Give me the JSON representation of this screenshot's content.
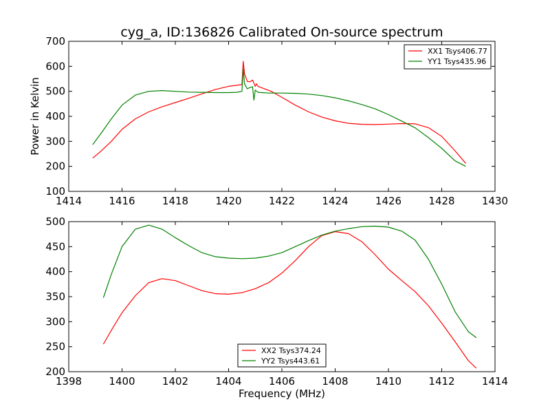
{
  "chart_data": [
    {
      "type": "line",
      "title": "cyg_a, ID:136826 Calibrated On-source spectrum",
      "xlabel": "",
      "ylabel": "Power in Kelvin",
      "xlim": [
        1414,
        1430
      ],
      "ylim": [
        100,
        700
      ],
      "xticks": [
        "1414",
        "1416",
        "1418",
        "1420",
        "1422",
        "1424",
        "1426",
        "1428",
        "1430"
      ],
      "yticks": [
        "100",
        "200",
        "300",
        "400",
        "500",
        "600",
        "700"
      ],
      "legend_position": "top-right",
      "series": [
        {
          "name": "XX1 Tsys406.77",
          "color": "#ff0000",
          "x": [
            1414.9,
            1415.2,
            1415.6,
            1416.0,
            1416.5,
            1417.0,
            1417.5,
            1418.0,
            1418.5,
            1419.0,
            1419.5,
            1420.0,
            1420.3,
            1420.5,
            1420.55,
            1420.6,
            1420.7,
            1420.8,
            1420.9,
            1421.0,
            1421.05,
            1421.1,
            1421.3,
            1421.6,
            1422.0,
            1422.5,
            1423.0,
            1423.5,
            1424.0,
            1424.5,
            1425.0,
            1425.5,
            1426.0,
            1426.5,
            1427.0,
            1427.5,
            1428.0,
            1428.5,
            1428.9
          ],
          "y": [
            233,
            260,
            300,
            348,
            390,
            418,
            438,
            455,
            472,
            490,
            507,
            520,
            524,
            527,
            620,
            570,
            540,
            538,
            545,
            520,
            530,
            520,
            512,
            500,
            476,
            445,
            418,
            397,
            382,
            372,
            368,
            367,
            369,
            371,
            370,
            355,
            320,
            262,
            212
          ]
        },
        {
          "name": "YY1 Tsys435.96",
          "color": "#008000",
          "x": [
            1414.9,
            1415.2,
            1415.6,
            1416.0,
            1416.5,
            1417.0,
            1417.5,
            1418.0,
            1418.5,
            1419.0,
            1419.5,
            1420.0,
            1420.3,
            1420.5,
            1420.55,
            1420.6,
            1420.7,
            1420.8,
            1420.9,
            1420.95,
            1421.0,
            1421.1,
            1421.5,
            1422.0,
            1422.5,
            1423.0,
            1423.5,
            1424.0,
            1424.5,
            1425.0,
            1425.5,
            1426.0,
            1426.5,
            1427.0,
            1427.5,
            1428.0,
            1428.5,
            1428.9
          ],
          "y": [
            287,
            330,
            390,
            445,
            485,
            500,
            503,
            500,
            497,
            496,
            495,
            495,
            496,
            500,
            590,
            530,
            510,
            515,
            518,
            465,
            505,
            496,
            493,
            493,
            492,
            489,
            483,
            474,
            462,
            447,
            430,
            407,
            381,
            354,
            315,
            272,
            222,
            200
          ]
        }
      ]
    },
    {
      "type": "line",
      "title": "",
      "xlabel": "Frequency (MHz)",
      "ylabel": "",
      "xlim": [
        1398,
        1414
      ],
      "ylim": [
        200,
        500
      ],
      "xticks": [
        "1398",
        "1400",
        "1402",
        "1404",
        "1406",
        "1408",
        "1410",
        "1412",
        "1414"
      ],
      "yticks": [
        "200",
        "250",
        "300",
        "350",
        "400",
        "450",
        "500"
      ],
      "legend_position": "bottom-center",
      "series": [
        {
          "name": "XX2 Tsys374.24",
          "color": "#ff0000",
          "x": [
            1399.3,
            1399.6,
            1400.0,
            1400.5,
            1401.0,
            1401.5,
            1402.0,
            1402.5,
            1403.0,
            1403.5,
            1404.0,
            1404.5,
            1405.0,
            1405.5,
            1406.0,
            1406.5,
            1407.0,
            1407.5,
            1408.0,
            1408.5,
            1409.0,
            1409.5,
            1410.0,
            1410.5,
            1411.0,
            1411.5,
            1412.0,
            1412.5,
            1413.0,
            1413.3
          ],
          "y": [
            255,
            283,
            318,
            352,
            378,
            386,
            382,
            372,
            362,
            356,
            355,
            358,
            366,
            378,
            397,
            422,
            450,
            472,
            480,
            476,
            460,
            434,
            405,
            382,
            360,
            332,
            297,
            260,
            222,
            207
          ]
        },
        {
          "name": "YY2 Tsys443.61",
          "color": "#008000",
          "x": [
            1399.3,
            1399.6,
            1400.0,
            1400.5,
            1401.0,
            1401.5,
            1402.0,
            1402.5,
            1403.0,
            1403.5,
            1404.0,
            1404.5,
            1405.0,
            1405.5,
            1406.0,
            1406.5,
            1407.0,
            1407.5,
            1408.0,
            1408.5,
            1409.0,
            1409.5,
            1410.0,
            1410.5,
            1411.0,
            1411.5,
            1412.0,
            1412.5,
            1413.0,
            1413.3
          ],
          "y": [
            348,
            395,
            450,
            485,
            493,
            485,
            468,
            452,
            438,
            430,
            427,
            426,
            427,
            431,
            438,
            450,
            462,
            473,
            481,
            486,
            490,
            491,
            489,
            481,
            463,
            425,
            375,
            320,
            280,
            268
          ]
        }
      ]
    }
  ]
}
